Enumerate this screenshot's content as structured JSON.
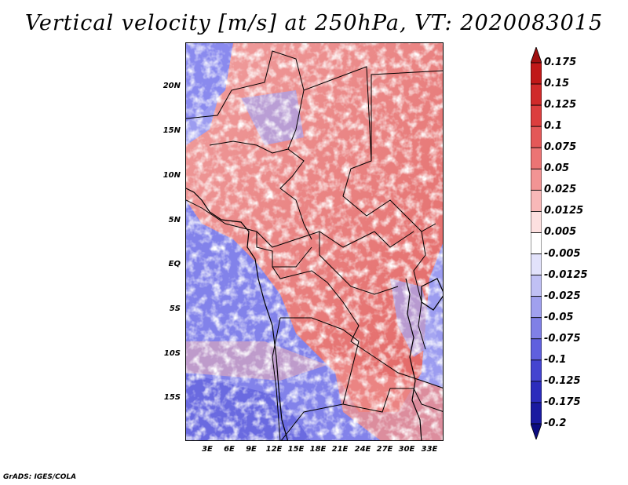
{
  "title": "Vertical velocity [m/s] at 250hPa, VT: 2020083015",
  "credit": "GrADS: IGES/COLA",
  "axes": {
    "lat_labels": [
      "20N",
      "15N",
      "10N",
      "5N",
      "EQ",
      "5S",
      "10S",
      "15S"
    ],
    "lon_labels": [
      "3E",
      "6E",
      "9E",
      "12E",
      "15E",
      "18E",
      "21E",
      "24E",
      "27E",
      "30E",
      "33E"
    ]
  },
  "colorbar": {
    "levels": [
      "0.175",
      "0.15",
      "0.125",
      "0.1",
      "0.075",
      "0.05",
      "0.025",
      "0.0125",
      "0.005",
      "-0.005",
      "-0.0125",
      "-0.025",
      "-0.05",
      "-0.075",
      "-0.1",
      "-0.125",
      "-0.175",
      "-0.2"
    ],
    "colors": [
      "#a01010",
      "#c01818",
      "#d02a2a",
      "#dc3e3e",
      "#e45858",
      "#ec7474",
      "#f29494",
      "#f8b8b8",
      "#fde0e0",
      "#ffffff",
      "#e2e2fb",
      "#c0c0f4",
      "#a0a0ee",
      "#8080e6",
      "#6060de",
      "#4444d0",
      "#2c2cbc",
      "#1a1aa0",
      "#0c0c80"
    ]
  },
  "map": {
    "colors": {
      "positive": "#e0605e",
      "positive_light": "#f4aaa8",
      "negative": "#7c7cea",
      "negative_light": "#b4b4f4",
      "neutral": "#ffffff"
    }
  }
}
